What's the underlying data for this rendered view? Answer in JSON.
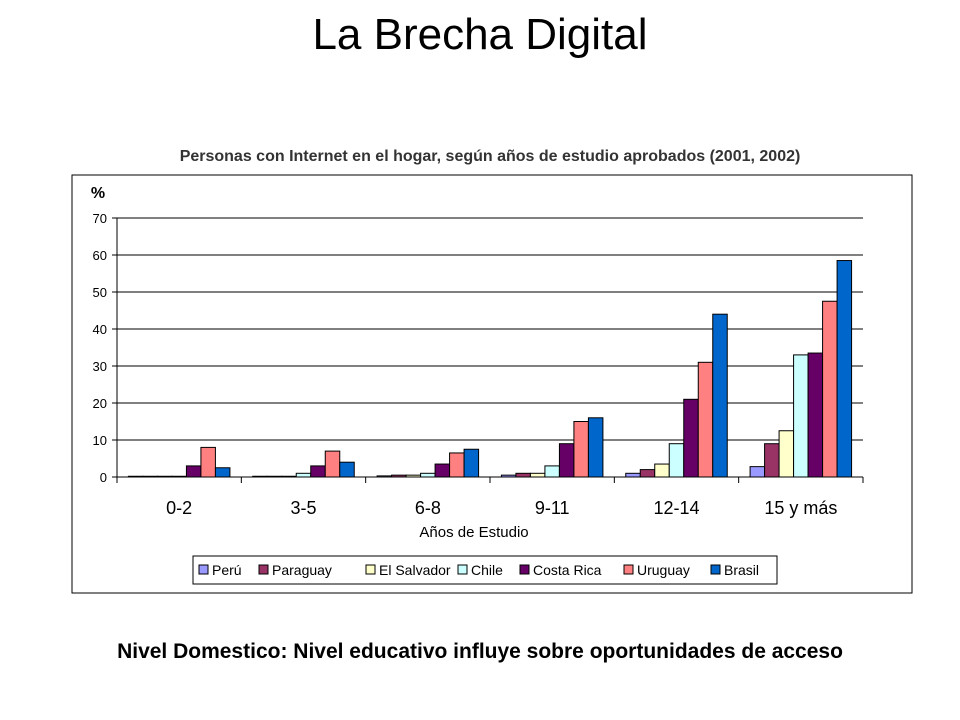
{
  "slide": {
    "title": "La Brecha Digital",
    "footer": "Nivel Domestico: Nivel educativo influye sobre oportunidades de acceso"
  },
  "chart_data": {
    "type": "bar",
    "title": "Personas con Internet en el hogar, según años de estudio aprobados (2001, 2002)",
    "xlabel": "Años de Estudio",
    "ylabel": "%",
    "ylim": [
      0,
      70
    ],
    "yticks": [
      0,
      10,
      20,
      30,
      40,
      50,
      60,
      70
    ],
    "grid": true,
    "legend_position": "bottom",
    "categories": [
      "0-2",
      "3-5",
      "6-8",
      "9-11",
      "12-14",
      "15 y más"
    ],
    "series": [
      {
        "name": "Perú",
        "color": "#9999FF",
        "values": [
          0.2,
          0.2,
          0.3,
          0.5,
          1.0,
          2.8
        ]
      },
      {
        "name": "Paraguay",
        "color": "#993366",
        "values": [
          0.2,
          0.2,
          0.5,
          1.0,
          2.0,
          9.0
        ]
      },
      {
        "name": "El Salvador",
        "color": "#FFFFCC",
        "values": [
          0.2,
          0.2,
          0.5,
          1.0,
          3.5,
          12.5
        ]
      },
      {
        "name": "Chile",
        "color": "#CCFFFF",
        "values": [
          0.2,
          1.0,
          1.0,
          3.0,
          9.0,
          33.0
        ]
      },
      {
        "name": "Costa Rica",
        "color": "#660066",
        "values": [
          3.0,
          3.0,
          3.5,
          9.0,
          21.0,
          33.5
        ]
      },
      {
        "name": "Uruguay",
        "color": "#FF8080",
        "values": [
          8.0,
          7.0,
          6.5,
          15.0,
          31.0,
          47.5
        ]
      },
      {
        "name": "Brasil",
        "color": "#0066CC",
        "values": [
          2.5,
          4.0,
          7.5,
          16.0,
          44.0,
          58.5
        ]
      }
    ]
  }
}
